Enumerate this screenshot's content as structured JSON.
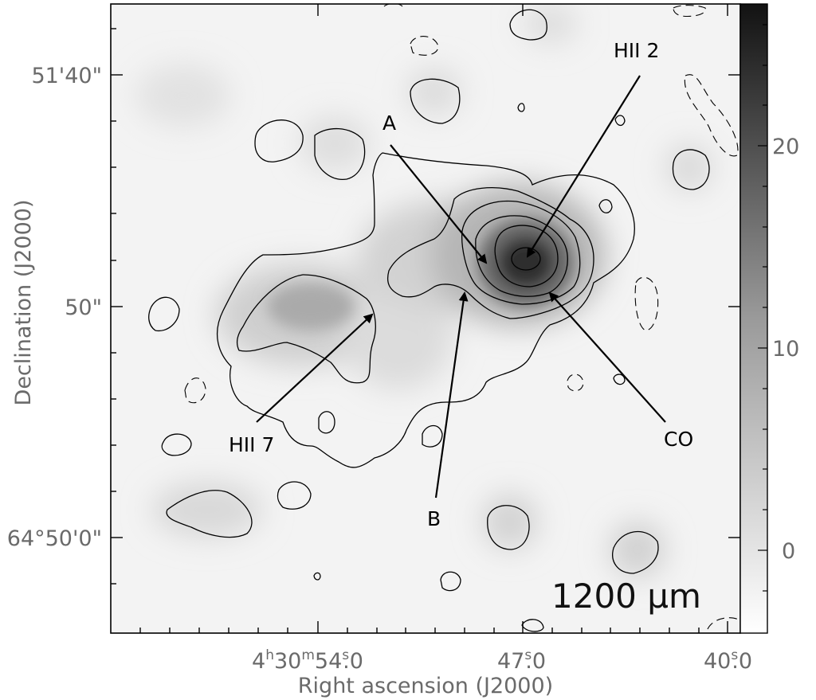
{
  "chart_data": {
    "type": "heatmap",
    "title": "",
    "wavelength_label": "1200 μm",
    "xlabel": "Right ascension (J2000)",
    "ylabel": "Declination (J2000)",
    "x_ticks": [
      {
        "h": "4",
        "m": "30",
        "s": "54",
        "frac": "0"
      },
      {
        "s": "47",
        "frac": "0"
      },
      {
        "s": "40",
        "frac": "0"
      }
    ],
    "y_ticks": [
      "51'40\"",
      "50\"",
      "64°50'0\""
    ],
    "colorbar": {
      "ticks": [
        "20",
        "10",
        "0"
      ],
      "range": [
        -3,
        26
      ],
      "colormap": "white-to-black"
    },
    "sources": [
      {
        "name": "A"
      },
      {
        "name": "B"
      },
      {
        "name": "HII 2"
      },
      {
        "name": "HII 7"
      },
      {
        "name": "CO"
      }
    ],
    "contour_style": "solid positive, dashed negative",
    "grid": false
  }
}
